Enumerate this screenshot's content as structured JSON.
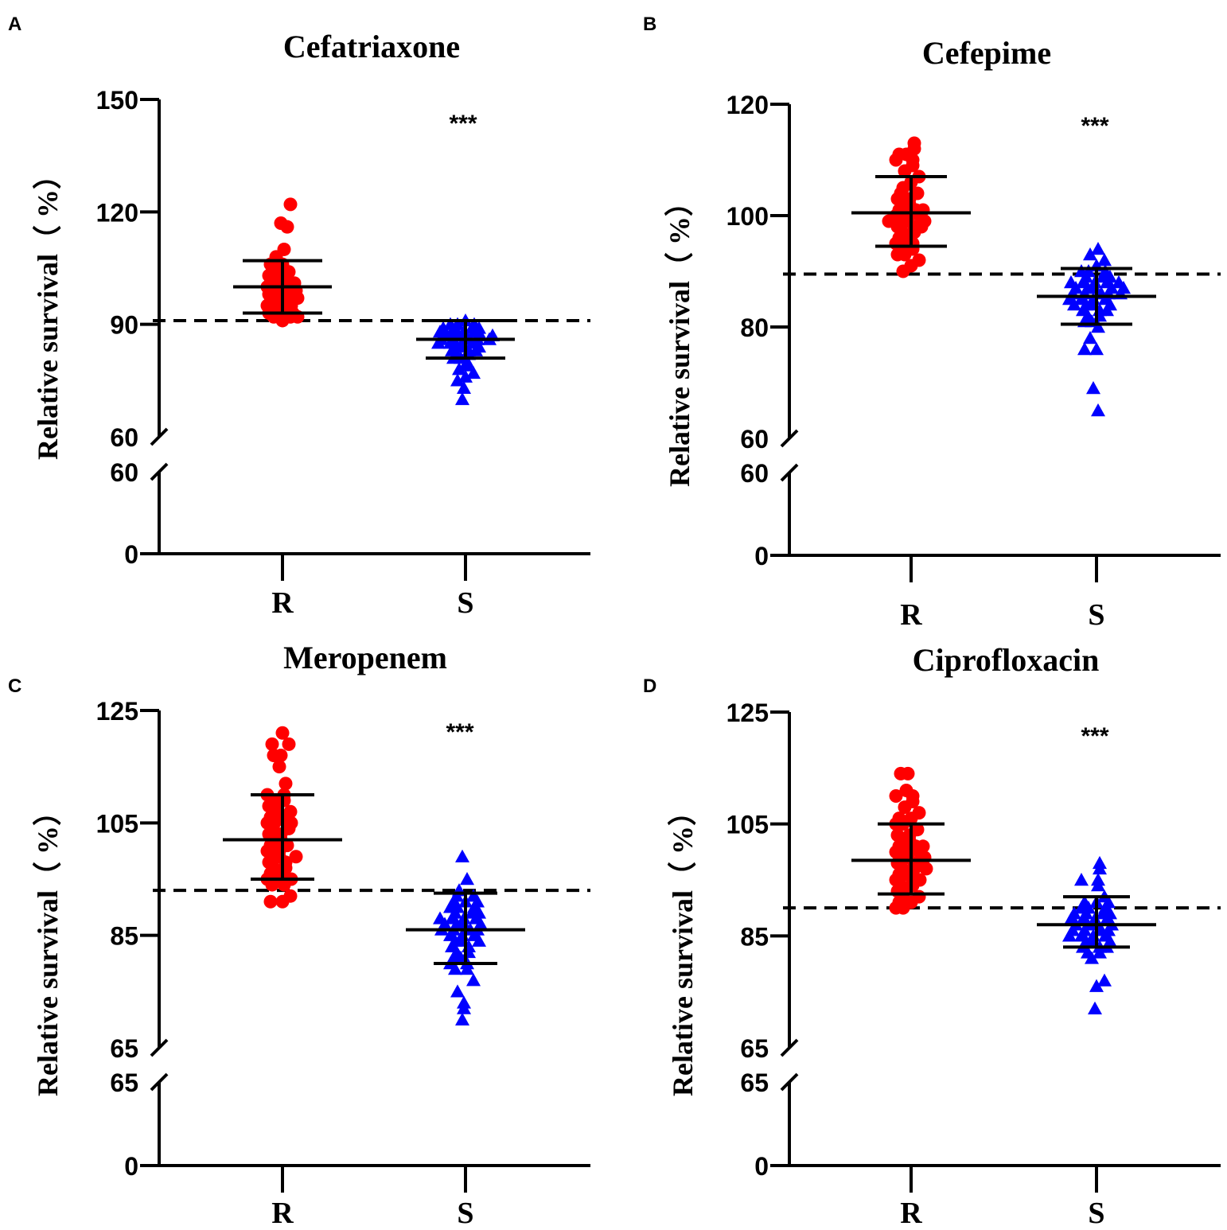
{
  "colors": {
    "R": "#ff0000",
    "S": "#0000ff",
    "axis": "#000000"
  },
  "chart_data": [
    {
      "panel": "A",
      "type": "scatter",
      "title": "Cefatriaxone",
      "ylabel": "Relative survival（ %）",
      "categories": [
        "R",
        "S"
      ],
      "upper_ylim": [
        60,
        150
      ],
      "upper_ticks": [
        "60",
        "90",
        "120",
        "150"
      ],
      "lower_ticks": [
        "0",
        "60"
      ],
      "threshold": 91,
      "significance": "***",
      "series": [
        {
          "name": "R",
          "marker": "circle",
          "mean": 100,
          "sd_low": 93,
          "sd_high": 107,
          "values": [
            122,
            117,
            116,
            110,
            108,
            106,
            106,
            105,
            104,
            104,
            103,
            103,
            102,
            102,
            101,
            101,
            101,
            100,
            100,
            100,
            99,
            99,
            99,
            98,
            98,
            98,
            97,
            97,
            97,
            96,
            96,
            95,
            95,
            95,
            94,
            94,
            93,
            93,
            93,
            92,
            92,
            92,
            91
          ]
        },
        {
          "name": "S",
          "marker": "triangle",
          "mean": 86,
          "sd_low": 81,
          "sd_high": 91,
          "values": [
            91,
            90,
            90,
            90,
            89,
            89,
            89,
            89,
            88,
            88,
            88,
            88,
            87,
            87,
            87,
            87,
            87,
            86,
            86,
            86,
            86,
            86,
            85,
            85,
            85,
            85,
            84,
            84,
            84,
            83,
            83,
            83,
            82,
            82,
            81,
            81,
            80,
            79,
            78,
            77,
            76,
            75,
            73,
            70
          ]
        }
      ]
    },
    {
      "panel": "B",
      "type": "scatter",
      "title": "Cefepime",
      "ylabel": "Relative survival（ %）",
      "categories": [
        "R",
        "S"
      ],
      "upper_ylim": [
        60,
        120
      ],
      "upper_ticks": [
        "60",
        "80",
        "100",
        "120"
      ],
      "lower_ticks": [
        "0",
        "60"
      ],
      "threshold": 89.5,
      "significance": "***",
      "series": [
        {
          "name": "R",
          "marker": "circle",
          "mean": 100.5,
          "sd_low": 94.5,
          "sd_high": 107,
          "values": [
            113,
            112,
            111,
            111,
            110,
            110,
            109,
            108,
            107,
            106,
            105,
            104,
            104,
            103,
            103,
            102,
            102,
            101,
            101,
            101,
            100,
            100,
            100,
            99,
            99,
            99,
            99,
            98,
            98,
            98,
            97,
            97,
            96,
            96,
            95,
            95,
            94,
            94,
            93,
            93,
            92,
            91,
            90
          ]
        },
        {
          "name": "S",
          "marker": "triangle",
          "mean": 85.5,
          "sd_low": 80.5,
          "sd_high": 90.5,
          "values": [
            94,
            93,
            92,
            91,
            90,
            90,
            90,
            89,
            89,
            89,
            88,
            88,
            88,
            88,
            88,
            87,
            87,
            87,
            87,
            87,
            86,
            86,
            86,
            86,
            86,
            85,
            85,
            85,
            85,
            84,
            84,
            84,
            84,
            83,
            83,
            83,
            82,
            82,
            81,
            81,
            80,
            78,
            76,
            76,
            69,
            65
          ]
        }
      ]
    },
    {
      "panel": "C",
      "type": "scatter",
      "title": "Meropenem",
      "ylabel": "Relative survival（ %）",
      "categories": [
        "R",
        "S"
      ],
      "upper_ylim": [
        65,
        125
      ],
      "upper_ticks": [
        "65",
        "85",
        "105",
        "125"
      ],
      "lower_ticks": [
        "0",
        "65"
      ],
      "threshold": 93,
      "significance": "***",
      "series": [
        {
          "name": "R",
          "marker": "circle",
          "mean": 102,
          "sd_low": 95,
          "sd_high": 110,
          "values": [
            121,
            119,
            119,
            117,
            117,
            115,
            112,
            110,
            110,
            109,
            109,
            108,
            108,
            107,
            107,
            106,
            106,
            105,
            105,
            105,
            104,
            104,
            103,
            103,
            102,
            102,
            101,
            101,
            100,
            100,
            99,
            99,
            99,
            98,
            98,
            97,
            97,
            96,
            96,
            95,
            95,
            95,
            94,
            94,
            92,
            91,
            91
          ]
        },
        {
          "name": "S",
          "marker": "triangle",
          "mean": 86,
          "sd_low": 80,
          "sd_high": 92.5,
          "values": [
            99,
            95,
            93,
            92,
            92,
            91,
            91,
            91,
            90,
            90,
            90,
            89,
            89,
            89,
            88,
            88,
            88,
            88,
            87,
            87,
            87,
            87,
            86,
            86,
            86,
            86,
            85,
            85,
            85,
            84,
            84,
            84,
            83,
            83,
            82,
            82,
            81,
            81,
            80,
            80,
            79,
            79,
            77,
            75,
            73,
            72,
            70
          ]
        }
      ]
    },
    {
      "panel": "D",
      "type": "scatter",
      "title": "Ciprofloxacin",
      "ylabel": "Relative survival（ %）",
      "categories": [
        "R",
        "S"
      ],
      "upper_ylim": [
        65,
        125
      ],
      "upper_ticks": [
        "65",
        "85",
        "105",
        "125"
      ],
      "lower_ticks": [
        "0",
        "65"
      ],
      "threshold": 90,
      "significance": "***",
      "series": [
        {
          "name": "R",
          "marker": "circle",
          "mean": 98.5,
          "sd_low": 92.5,
          "sd_high": 105,
          "values": [
            114,
            114,
            111,
            110,
            110,
            109,
            108,
            107,
            106,
            106,
            105,
            105,
            104,
            103,
            103,
            102,
            102,
            101,
            101,
            101,
            100,
            100,
            100,
            99,
            99,
            99,
            98,
            98,
            98,
            97,
            97,
            97,
            96,
            96,
            95,
            95,
            95,
            94,
            94,
            93,
            93,
            92,
            92,
            91,
            91,
            90,
            90
          ]
        },
        {
          "name": "S",
          "marker": "triangle",
          "mean": 87,
          "sd_low": 83,
          "sd_high": 92,
          "values": [
            98,
            97,
            95,
            95,
            94,
            92,
            91,
            91,
            91,
            90,
            90,
            90,
            89,
            89,
            89,
            89,
            88,
            88,
            88,
            88,
            87,
            87,
            87,
            87,
            86,
            86,
            86,
            86,
            85,
            85,
            85,
            85,
            84,
            84,
            84,
            83,
            83,
            83,
            82,
            82,
            81,
            77,
            76,
            72
          ]
        }
      ]
    }
  ]
}
